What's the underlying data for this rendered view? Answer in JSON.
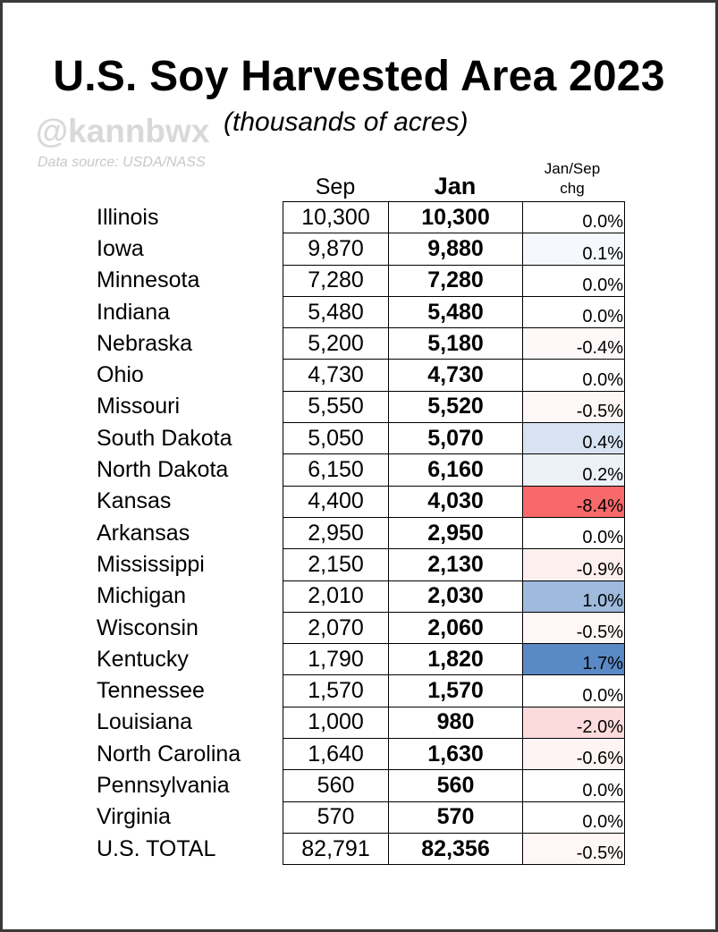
{
  "title": "U.S. Soy Harvested Area 2023",
  "handle": "@kannbwx",
  "subtitle": "(thousands of acres)",
  "source": "Data source: USDA/NASS",
  "chart_data": {
    "type": "table",
    "columns": [
      "Sep",
      "Jan",
      "Jan/Sep chg"
    ],
    "rows": [
      {
        "state": "Illinois",
        "sep": "10,300",
        "jan": "10,300",
        "chg": "0.0%",
        "chg_value": 0.0
      },
      {
        "state": "Iowa",
        "sep": "9,870",
        "jan": "9,880",
        "chg": "0.1%",
        "chg_value": 0.1
      },
      {
        "state": "Minnesota",
        "sep": "7,280",
        "jan": "7,280",
        "chg": "0.0%",
        "chg_value": 0.0
      },
      {
        "state": "Indiana",
        "sep": "5,480",
        "jan": "5,480",
        "chg": "0.0%",
        "chg_value": 0.0
      },
      {
        "state": "Nebraska",
        "sep": "5,200",
        "jan": "5,180",
        "chg": "-0.4%",
        "chg_value": -0.4
      },
      {
        "state": "Ohio",
        "sep": "4,730",
        "jan": "4,730",
        "chg": "0.0%",
        "chg_value": 0.0
      },
      {
        "state": "Missouri",
        "sep": "5,550",
        "jan": "5,520",
        "chg": "-0.5%",
        "chg_value": -0.5
      },
      {
        "state": "South Dakota",
        "sep": "5,050",
        "jan": "5,070",
        "chg": "0.4%",
        "chg_value": 0.4
      },
      {
        "state": "North Dakota",
        "sep": "6,150",
        "jan": "6,160",
        "chg": "0.2%",
        "chg_value": 0.2
      },
      {
        "state": "Kansas",
        "sep": "4,400",
        "jan": "4,030",
        "chg": "-8.4%",
        "chg_value": -8.4
      },
      {
        "state": "Arkansas",
        "sep": "2,950",
        "jan": "2,950",
        "chg": "0.0%",
        "chg_value": 0.0
      },
      {
        "state": "Mississippi",
        "sep": "2,150",
        "jan": "2,130",
        "chg": "-0.9%",
        "chg_value": -0.9
      },
      {
        "state": "Michigan",
        "sep": "2,010",
        "jan": "2,030",
        "chg": "1.0%",
        "chg_value": 1.0
      },
      {
        "state": "Wisconsin",
        "sep": "2,070",
        "jan": "2,060",
        "chg": "-0.5%",
        "chg_value": -0.5
      },
      {
        "state": "Kentucky",
        "sep": "1,790",
        "jan": "1,820",
        "chg": "1.7%",
        "chg_value": 1.7
      },
      {
        "state": "Tennessee",
        "sep": "1,570",
        "jan": "1,570",
        "chg": "0.0%",
        "chg_value": 0.0
      },
      {
        "state": "Louisiana",
        "sep": "1,000",
        "jan": "980",
        "chg": "-2.0%",
        "chg_value": -2.0
      },
      {
        "state": "North Carolina",
        "sep": "1,640",
        "jan": "1,630",
        "chg": "-0.6%",
        "chg_value": -0.6
      },
      {
        "state": "Pennsylvania",
        "sep": "560",
        "jan": "560",
        "chg": "0.0%",
        "chg_value": 0.0
      },
      {
        "state": "Virginia",
        "sep": "570",
        "jan": "570",
        "chg": "0.0%",
        "chg_value": 0.0
      },
      {
        "state": "U.S. TOTAL",
        "sep": "82,791",
        "jan": "82,356",
        "chg": "-0.5%",
        "chg_value": -0.5
      }
    ],
    "colors": {
      "negative_max": "#f8696b",
      "positive_max": "#5a8ac6",
      "neutral": "#ffffff"
    },
    "color_scale_min": -8.4,
    "color_scale_max": 1.7
  }
}
